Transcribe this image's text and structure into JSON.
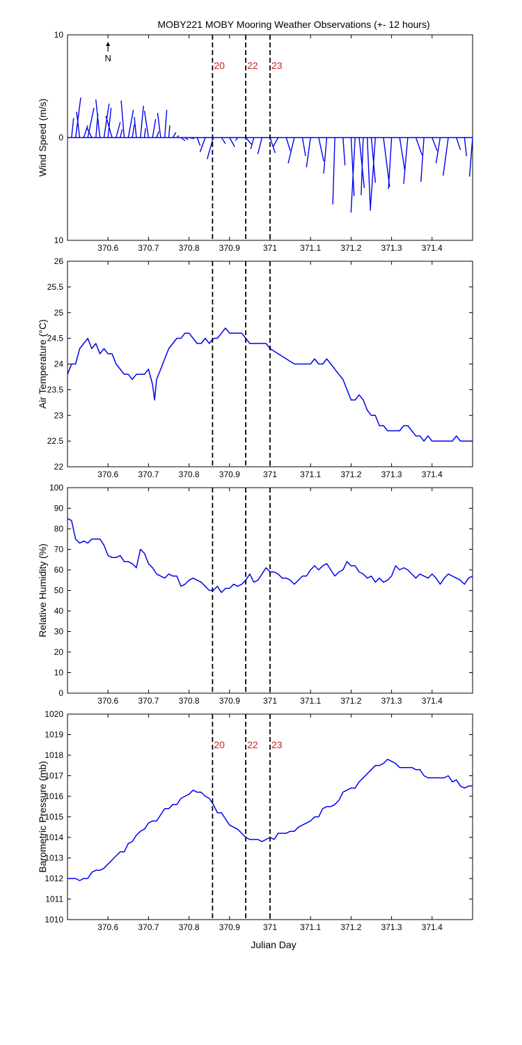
{
  "figure": {
    "title": "MOBY221 MOBY Mooring Weather Observations (+- 12 hours)",
    "xlabel": "Julian Day",
    "xticks": [
      "370.6",
      "370.7",
      "370.8",
      "370.9",
      "371",
      "371.1",
      "371.2",
      "371.3",
      "371.4"
    ],
    "xlim": [
      370.5,
      371.5
    ],
    "event_lines": {
      "x": [
        370.858,
        370.94,
        371.0
      ],
      "labels": [
        "20",
        "22",
        "23"
      ],
      "label_color": "#cc2222"
    },
    "north_label": "N",
    "line_color": "#0000ee"
  },
  "chart_data": [
    {
      "type": "line",
      "subtype": "stick",
      "ylabel": "Wind Speed (m/s)",
      "ylim": [
        -10,
        10
      ],
      "yticks": [
        "10",
        "0",
        "10"
      ],
      "ytick_values": [
        10,
        0,
        -10
      ],
      "grid": false,
      "series": [
        {
          "x": [
            370.51,
            370.52,
            370.53,
            370.54,
            370.55,
            370.56,
            370.57,
            370.58,
            370.59,
            370.6,
            370.61,
            370.62,
            370.63,
            370.64,
            370.65,
            370.66,
            370.67,
            370.68,
            370.69,
            370.7,
            370.71,
            370.72,
            370.73,
            370.74,
            370.75,
            370.76,
            370.77,
            370.78,
            370.79,
            370.8,
            370.82,
            370.84,
            370.86,
            370.88,
            370.9,
            370.92,
            370.94,
            370.96,
            370.98,
            371.0,
            371.02,
            371.04,
            371.06,
            371.08,
            371.1,
            371.12,
            371.14,
            371.16,
            371.18,
            371.2,
            371.21,
            371.22,
            371.23,
            371.24,
            371.25,
            371.26,
            371.28,
            371.3,
            371.32,
            371.34,
            371.36,
            371.38,
            371.4,
            371.42,
            371.44,
            371.46,
            371.48,
            371.5
          ],
          "u": [
            0.2,
            0.5,
            -0.3,
            0.4,
            0.6,
            -0.5,
            0.2,
            -0.4,
            0.5,
            0.3,
            -0.6,
            0.4,
            0.2,
            -0.3,
            0.5,
            0.2,
            -0.2,
            0.3,
            0.1,
            -0.4,
            0.3,
            0.2,
            -0.3,
            0.2,
            0.1,
            0.3,
            0.2,
            0.4,
            0.3,
            0.5,
            0.3,
            -0.5,
            -0.6,
            0.4,
            0.5,
            -0.2,
            0.6,
            -0.3,
            -0.4,
            0.5,
            -0.5,
            0.4,
            -0.6,
            0.3,
            -0.4,
            0.5,
            -0.3,
            -0.2,
            0.2,
            0.3,
            -0.4,
            0.5,
            -0.2,
            0.3,
            0.4,
            -0.5,
            0.6,
            -0.3,
            0.5,
            -0.4,
            0.6,
            -0.3,
            0.5,
            -0.4,
            -0.5,
            0.4,
            0.2,
            -0.3
          ],
          "v": [
            1.9,
            3.9,
            2.5,
            1.2,
            2.9,
            1.0,
            2.3,
            3.7,
            3.3,
            2.9,
            2.1,
            1.5,
            0.8,
            3.6,
            2.7,
            1.3,
            2.0,
            3.1,
            0.9,
            2.6,
            1.8,
            0.6,
            2.4,
            2.7,
            1.2,
            0.5,
            0.2,
            -0.3,
            -0.2,
            -0.1,
            -0.8,
            -1.4,
            -2.1,
            -0.6,
            -0.9,
            -0.3,
            -0.7,
            -1.1,
            -1.6,
            -1.5,
            -0.9,
            -1.3,
            -2.5,
            -1.8,
            -2.9,
            -2.3,
            -3.5,
            -6.5,
            -2.7,
            -5.7,
            -7.3,
            -4.9,
            -5.6,
            -6.9,
            -4.4,
            -7.1,
            -4.8,
            -5.0,
            -3.2,
            -4.5,
            -1.7,
            -4.3,
            -1.3,
            -2.5,
            -3.7,
            -1.2,
            -1.8,
            -3.8
          ]
        }
      ]
    },
    {
      "type": "line",
      "ylabel": "Air Temperature (°C)",
      "ylim": [
        22,
        26
      ],
      "yticks": [
        "22",
        "22.5",
        "23",
        "23.5",
        "24",
        "24.5",
        "25",
        "25.5",
        "26"
      ],
      "ytick_values": [
        22,
        22.5,
        23,
        23.5,
        24,
        24.5,
        25,
        25.5,
        26
      ],
      "grid": false,
      "series": [
        {
          "x": [
            370.5,
            370.51,
            370.52,
            370.53,
            370.54,
            370.55,
            370.56,
            370.57,
            370.58,
            370.59,
            370.6,
            370.61,
            370.62,
            370.63,
            370.64,
            370.65,
            370.66,
            370.67,
            370.68,
            370.69,
            370.7,
            370.71,
            370.715,
            370.72,
            370.73,
            370.74,
            370.75,
            370.76,
            370.77,
            370.78,
            370.79,
            370.8,
            370.81,
            370.82,
            370.83,
            370.84,
            370.85,
            370.86,
            370.87,
            370.88,
            370.89,
            370.9,
            370.91,
            370.92,
            370.93,
            370.94,
            370.95,
            370.96,
            370.97,
            370.98,
            370.99,
            371.0,
            371.02,
            371.04,
            371.06,
            371.08,
            371.09,
            371.1,
            371.11,
            371.12,
            371.13,
            371.14,
            371.15,
            371.16,
            371.17,
            371.18,
            371.19,
            371.2,
            371.21,
            371.22,
            371.23,
            371.24,
            371.25,
            371.26,
            371.27,
            371.28,
            371.29,
            371.3,
            371.31,
            371.32,
            371.33,
            371.34,
            371.35,
            371.36,
            371.37,
            371.38,
            371.39,
            371.4,
            371.41,
            371.42,
            371.43,
            371.44,
            371.45,
            371.46,
            371.47,
            371.48,
            371.49,
            371.5
          ],
          "y": [
            23.8,
            24.0,
            24.0,
            24.3,
            24.4,
            24.5,
            24.3,
            24.4,
            24.2,
            24.3,
            24.2,
            24.2,
            24.0,
            23.9,
            23.8,
            23.8,
            23.7,
            23.8,
            23.8,
            23.8,
            23.9,
            23.6,
            23.3,
            23.7,
            23.9,
            24.1,
            24.3,
            24.4,
            24.5,
            24.5,
            24.6,
            24.6,
            24.5,
            24.4,
            24.4,
            24.5,
            24.4,
            24.5,
            24.5,
            24.6,
            24.7,
            24.6,
            24.6,
            24.6,
            24.6,
            24.5,
            24.4,
            24.4,
            24.4,
            24.4,
            24.4,
            24.3,
            24.2,
            24.1,
            24.0,
            24.0,
            24.0,
            24.0,
            24.1,
            24.0,
            24.0,
            24.1,
            24.0,
            23.9,
            23.8,
            23.7,
            23.5,
            23.3,
            23.3,
            23.4,
            23.3,
            23.1,
            23.0,
            23.0,
            22.8,
            22.8,
            22.7,
            22.7,
            22.7,
            22.7,
            22.8,
            22.8,
            22.7,
            22.6,
            22.6,
            22.5,
            22.6,
            22.5,
            22.5,
            22.5,
            22.5,
            22.5,
            22.5,
            22.6,
            22.5,
            22.5,
            22.5,
            22.5
          ]
        }
      ]
    },
    {
      "type": "line",
      "ylabel": "Relative Humidity (%)",
      "ylim": [
        0,
        100
      ],
      "yticks": [
        "0",
        "10",
        "20",
        "30",
        "40",
        "50",
        "60",
        "70",
        "80",
        "90",
        "100"
      ],
      "ytick_values": [
        0,
        10,
        20,
        30,
        40,
        50,
        60,
        70,
        80,
        90,
        100
      ],
      "grid": false,
      "series": [
        {
          "x": [
            370.5,
            370.51,
            370.52,
            370.53,
            370.54,
            370.55,
            370.56,
            370.57,
            370.58,
            370.59,
            370.6,
            370.61,
            370.62,
            370.63,
            370.64,
            370.65,
            370.66,
            370.67,
            370.68,
            370.69,
            370.7,
            370.71,
            370.72,
            370.73,
            370.74,
            370.75,
            370.76,
            370.77,
            370.78,
            370.79,
            370.8,
            370.81,
            370.82,
            370.83,
            370.84,
            370.85,
            370.86,
            370.87,
            370.88,
            370.89,
            370.9,
            370.91,
            370.92,
            370.93,
            370.94,
            370.95,
            370.96,
            370.97,
            370.98,
            370.99,
            371.0,
            371.01,
            371.02,
            371.03,
            371.04,
            371.05,
            371.06,
            371.07,
            371.08,
            371.09,
            371.1,
            371.11,
            371.12,
            371.13,
            371.14,
            371.15,
            371.16,
            371.17,
            371.18,
            371.19,
            371.2,
            371.21,
            371.22,
            371.23,
            371.24,
            371.25,
            371.26,
            371.27,
            371.28,
            371.29,
            371.3,
            371.31,
            371.32,
            371.33,
            371.34,
            371.35,
            371.36,
            371.37,
            371.38,
            371.39,
            371.4,
            371.41,
            371.42,
            371.43,
            371.44,
            371.45,
            371.46,
            371.47,
            371.48,
            371.49,
            371.5
          ],
          "y": [
            85,
            84,
            75,
            73,
            74,
            73,
            75,
            75,
            75,
            72,
            67,
            66,
            66,
            67,
            64,
            64,
            63,
            61,
            70,
            68,
            63,
            61,
            58,
            57,
            56,
            58,
            57,
            57,
            52,
            53,
            55,
            56,
            55,
            54,
            52,
            50,
            50,
            52,
            49,
            51,
            51,
            53,
            52,
            53,
            55,
            58,
            54,
            55,
            58,
            61,
            59,
            59,
            58,
            56,
            56,
            55,
            53,
            55,
            57,
            57,
            60,
            62,
            60,
            62,
            63,
            60,
            57,
            59,
            60,
            64,
            62,
            62,
            59,
            58,
            56,
            57,
            54,
            56,
            54,
            55,
            57,
            62,
            60,
            61,
            60,
            58,
            56,
            58,
            57,
            56,
            58,
            56,
            53,
            56,
            58,
            57,
            56,
            55,
            53,
            56,
            57
          ]
        }
      ]
    },
    {
      "type": "line",
      "ylabel": "Barometric Pressure (mb)",
      "ylim": [
        1010,
        1020
      ],
      "yticks": [
        "1010",
        "1011",
        "1012",
        "1013",
        "1014",
        "1015",
        "1016",
        "1017",
        "1018",
        "1019",
        "1020"
      ],
      "ytick_values": [
        1010,
        1011,
        1012,
        1013,
        1014,
        1015,
        1016,
        1017,
        1018,
        1019,
        1020
      ],
      "grid": false,
      "series": [
        {
          "x": [
            370.5,
            370.51,
            370.52,
            370.53,
            370.54,
            370.55,
            370.56,
            370.57,
            370.58,
            370.59,
            370.6,
            370.61,
            370.62,
            370.63,
            370.64,
            370.65,
            370.66,
            370.67,
            370.68,
            370.69,
            370.7,
            370.71,
            370.72,
            370.73,
            370.74,
            370.75,
            370.76,
            370.77,
            370.78,
            370.79,
            370.8,
            370.81,
            370.82,
            370.83,
            370.84,
            370.85,
            370.86,
            370.87,
            370.88,
            370.89,
            370.9,
            370.91,
            370.92,
            370.93,
            370.94,
            370.95,
            370.96,
            370.97,
            370.98,
            370.99,
            371.0,
            371.01,
            371.02,
            371.03,
            371.04,
            371.05,
            371.06,
            371.07,
            371.08,
            371.09,
            371.1,
            371.11,
            371.12,
            371.13,
            371.14,
            371.15,
            371.16,
            371.17,
            371.18,
            371.19,
            371.2,
            371.21,
            371.22,
            371.23,
            371.24,
            371.25,
            371.26,
            371.27,
            371.28,
            371.29,
            371.3,
            371.31,
            371.32,
            371.33,
            371.34,
            371.35,
            371.36,
            371.37,
            371.38,
            371.39,
            371.4,
            371.41,
            371.42,
            371.43,
            371.44,
            371.45,
            371.46,
            371.47,
            371.48,
            371.49,
            371.5
          ],
          "y": [
            1012.0,
            1012.0,
            1012.0,
            1011.9,
            1012.0,
            1012.0,
            1012.3,
            1012.4,
            1012.4,
            1012.5,
            1012.7,
            1012.9,
            1013.1,
            1013.3,
            1013.3,
            1013.7,
            1013.8,
            1014.1,
            1014.3,
            1014.4,
            1014.7,
            1014.8,
            1014.8,
            1015.1,
            1015.4,
            1015.4,
            1015.6,
            1015.6,
            1015.9,
            1016.0,
            1016.1,
            1016.3,
            1016.2,
            1016.2,
            1016.0,
            1015.9,
            1015.6,
            1015.2,
            1015.2,
            1014.9,
            1014.6,
            1014.5,
            1014.4,
            1014.2,
            1014.0,
            1013.9,
            1013.9,
            1013.9,
            1013.8,
            1013.9,
            1014.0,
            1013.9,
            1014.2,
            1014.2,
            1014.2,
            1014.3,
            1014.3,
            1014.5,
            1014.6,
            1014.7,
            1014.8,
            1015.0,
            1015.0,
            1015.4,
            1015.5,
            1015.5,
            1015.6,
            1015.8,
            1016.2,
            1016.3,
            1016.4,
            1016.4,
            1016.7,
            1016.9,
            1017.1,
            1017.3,
            1017.5,
            1017.5,
            1017.6,
            1017.8,
            1017.7,
            1017.6,
            1017.4,
            1017.4,
            1017.4,
            1017.4,
            1017.3,
            1017.3,
            1017.0,
            1016.9,
            1016.9,
            1016.9,
            1016.9,
            1016.9,
            1017.0,
            1016.7,
            1016.8,
            1016.5,
            1016.4,
            1016.5,
            1016.5
          ]
        }
      ]
    }
  ]
}
